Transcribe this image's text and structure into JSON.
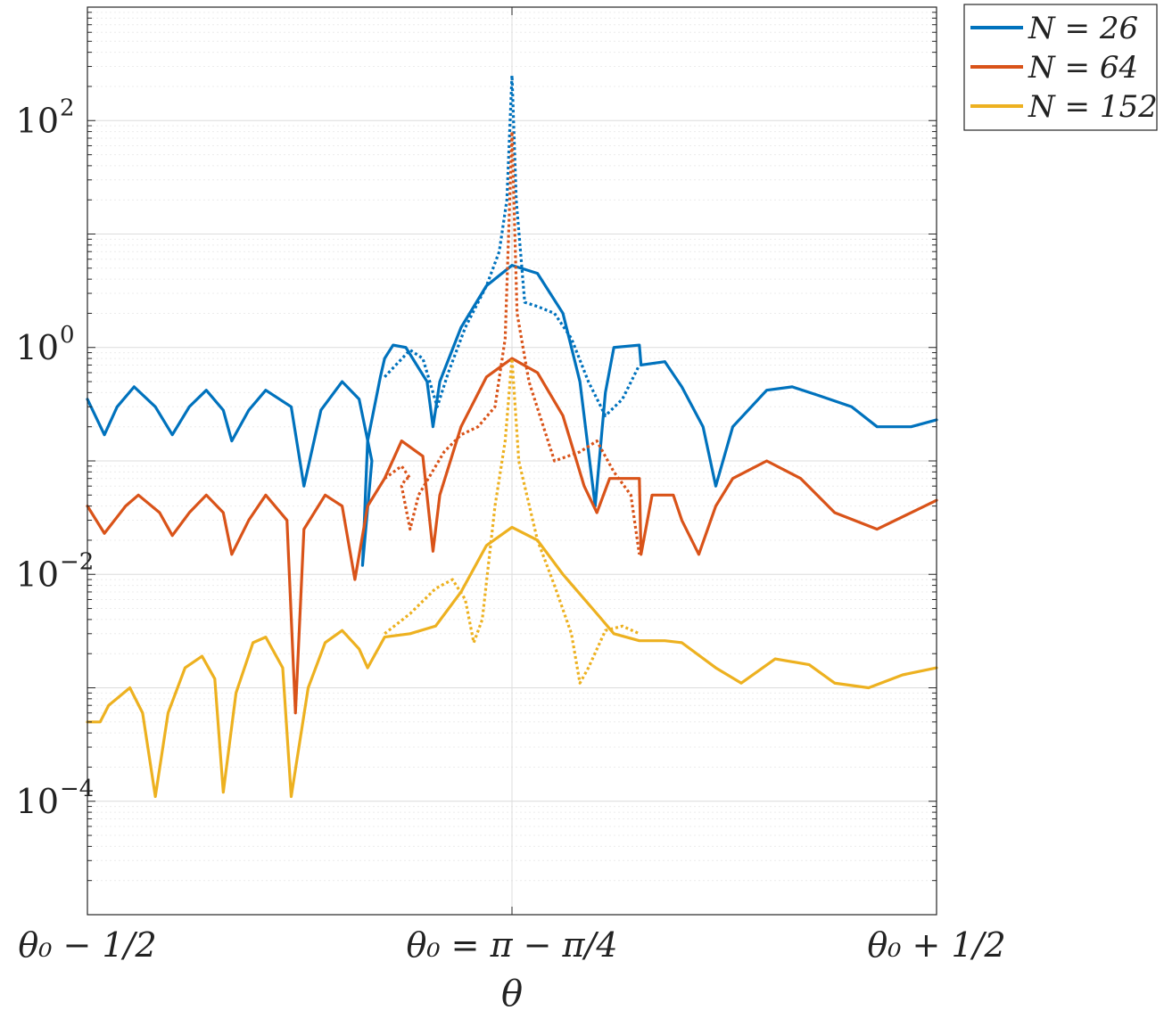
{
  "chart_data": {
    "type": "line",
    "title": "",
    "xlabel": "θ",
    "ylabel": "",
    "yscale": "log",
    "ylim": [
      1e-05,
      1000
    ],
    "xlim": [
      -0.5,
      0.5
    ],
    "grid": "on (major and minor)",
    "legend_placement": "outside top-right",
    "x_ticks": [
      {
        "x": -0.5,
        "label": "θ₀ − 1/2"
      },
      {
        "x": 0,
        "label": "θ₀ = π − π/4"
      },
      {
        "x": 0.5,
        "label": "θ₀ + 1/2"
      }
    ],
    "y_ticks": [
      {
        "y": 100,
        "base": "10",
        "exp": "2"
      },
      {
        "y": 1,
        "base": "10",
        "exp": "0"
      },
      {
        "y": 0.01,
        "base": "10",
        "exp": "−2"
      },
      {
        "y": 0.0001,
        "base": "10",
        "exp": "−4"
      }
    ],
    "colors": {
      "N26": "#0072BD",
      "N64": "#D95319",
      "N152": "#EDB120"
    },
    "series": [
      {
        "name": "N = 26",
        "legend": true,
        "style": "solid",
        "color": "#0072BD",
        "points": [
          [
            -0.5,
            0.35
          ],
          [
            -0.48,
            0.17
          ],
          [
            -0.465,
            0.3
          ],
          [
            -0.445,
            0.45
          ],
          [
            -0.42,
            0.3
          ],
          [
            -0.4,
            0.17
          ],
          [
            -0.38,
            0.3
          ],
          [
            -0.36,
            0.42
          ],
          [
            -0.34,
            0.28
          ],
          [
            -0.33,
            0.15
          ],
          [
            -0.31,
            0.28
          ],
          [
            -0.29,
            0.42
          ],
          [
            -0.26,
            0.3
          ],
          [
            -0.245,
            0.06
          ],
          [
            -0.225,
            0.28
          ],
          [
            -0.2,
            0.5
          ],
          [
            -0.18,
            0.35
          ],
          [
            -0.165,
            0.1
          ],
          [
            -0.176,
            0.012
          ],
          [
            -0.17,
            0.15
          ],
          [
            -0.155,
            0.55
          ],
          [
            -0.15,
            0.8
          ],
          [
            -0.14,
            1.05
          ],
          [
            -0.125,
            1.0
          ],
          [
            -0.1,
            0.5
          ],
          [
            -0.093,
            0.2
          ],
          [
            -0.085,
            0.5
          ],
          [
            -0.06,
            1.5
          ],
          [
            -0.03,
            3.5
          ],
          [
            0,
            5.3
          ],
          [
            0.03,
            4.5
          ],
          [
            0.06,
            2
          ],
          [
            0.08,
            0.5
          ],
          [
            0.098,
            0.04
          ],
          [
            0.11,
            0.4
          ],
          [
            0.12,
            1.0
          ],
          [
            0.15,
            1.05
          ],
          [
            0.152,
            0.7
          ],
          [
            0.18,
            0.75
          ],
          [
            0.2,
            0.45
          ],
          [
            0.225,
            0.2
          ],
          [
            0.24,
            0.06
          ],
          [
            0.26,
            0.2
          ],
          [
            0.3,
            0.42
          ],
          [
            0.33,
            0.45
          ],
          [
            0.36,
            0.38
          ],
          [
            0.4,
            0.3
          ],
          [
            0.43,
            0.2
          ],
          [
            0.47,
            0.2
          ],
          [
            0.5,
            0.23
          ]
        ]
      },
      {
        "name": "N = 26 (dotted)",
        "legend": false,
        "style": "dotted",
        "color": "#0072BD",
        "points": [
          [
            -0.15,
            0.55
          ],
          [
            -0.12,
            0.95
          ],
          [
            -0.105,
            0.8
          ],
          [
            -0.095,
            0.45
          ],
          [
            -0.088,
            0.3
          ],
          [
            -0.075,
            0.6
          ],
          [
            -0.055,
            1.5
          ],
          [
            -0.03,
            3.5
          ],
          [
            -0.015,
            7
          ],
          [
            -0.006,
            20
          ],
          [
            0,
            250
          ],
          [
            0.005,
            20
          ],
          [
            0.015,
            2.5
          ],
          [
            0.03,
            2.3
          ],
          [
            0.05,
            2.0
          ],
          [
            0.07,
            1.2
          ],
          [
            0.09,
            0.5
          ],
          [
            0.11,
            0.25
          ],
          [
            0.13,
            0.35
          ],
          [
            0.15,
            0.7
          ]
        ]
      },
      {
        "name": "N = 64",
        "legend": true,
        "style": "solid",
        "color": "#D95319",
        "points": [
          [
            -0.5,
            0.04
          ],
          [
            -0.48,
            0.023
          ],
          [
            -0.455,
            0.04
          ],
          [
            -0.44,
            0.05
          ],
          [
            -0.415,
            0.035
          ],
          [
            -0.4,
            0.022
          ],
          [
            -0.38,
            0.035
          ],
          [
            -0.36,
            0.05
          ],
          [
            -0.34,
            0.035
          ],
          [
            -0.33,
            0.015
          ],
          [
            -0.31,
            0.03
          ],
          [
            -0.29,
            0.05
          ],
          [
            -0.265,
            0.03
          ],
          [
            -0.255,
            0.0006
          ],
          [
            -0.245,
            0.025
          ],
          [
            -0.22,
            0.05
          ],
          [
            -0.2,
            0.04
          ],
          [
            -0.185,
            0.009
          ],
          [
            -0.17,
            0.04
          ],
          [
            -0.15,
            0.07
          ],
          [
            -0.13,
            0.15
          ],
          [
            -0.105,
            0.11
          ],
          [
            -0.093,
            0.016
          ],
          [
            -0.085,
            0.05
          ],
          [
            -0.06,
            0.2
          ],
          [
            -0.03,
            0.55
          ],
          [
            0,
            0.8
          ],
          [
            0.03,
            0.6
          ],
          [
            0.06,
            0.25
          ],
          [
            0.085,
            0.06
          ],
          [
            0.1,
            0.035
          ],
          [
            0.115,
            0.07
          ],
          [
            0.15,
            0.07
          ],
          [
            0.152,
            0.015
          ],
          [
            0.165,
            0.05
          ],
          [
            0.19,
            0.05
          ],
          [
            0.2,
            0.03
          ],
          [
            0.22,
            0.015
          ],
          [
            0.24,
            0.04
          ],
          [
            0.26,
            0.07
          ],
          [
            0.3,
            0.1
          ],
          [
            0.34,
            0.07
          ],
          [
            0.38,
            0.035
          ],
          [
            0.43,
            0.025
          ],
          [
            0.47,
            0.035
          ],
          [
            0.5,
            0.045
          ]
        ]
      },
      {
        "name": "N = 64 (dotted)",
        "legend": false,
        "style": "dotted",
        "color": "#D95319",
        "points": [
          [
            -0.15,
            0.07
          ],
          [
            -0.13,
            0.09
          ],
          [
            -0.12,
            0.07
          ],
          [
            -0.12,
            0.07
          ],
          [
            -0.125,
            0.07
          ],
          [
            -0.13,
            0.06
          ],
          [
            -0.12,
            0.025
          ],
          [
            -0.11,
            0.05
          ],
          [
            -0.08,
            0.12
          ],
          [
            -0.06,
            0.17
          ],
          [
            -0.04,
            0.2
          ],
          [
            -0.02,
            0.3
          ],
          [
            -0.008,
            1.2
          ],
          [
            0,
            80
          ],
          [
            0.006,
            2
          ],
          [
            0.02,
            0.5
          ],
          [
            0.05,
            0.1
          ],
          [
            0.08,
            0.12
          ],
          [
            0.1,
            0.15
          ],
          [
            0.12,
            0.08
          ],
          [
            0.14,
            0.05
          ],
          [
            0.15,
            0.015
          ]
        ]
      },
      {
        "name": "N = 152",
        "legend": true,
        "style": "solid",
        "color": "#EDB120",
        "points": [
          [
            -0.5,
            0.0005
          ],
          [
            -0.485,
            0.0005
          ],
          [
            -0.475,
            0.0007
          ],
          [
            -0.45,
            0.001
          ],
          [
            -0.435,
            0.0006
          ],
          [
            -0.42,
            0.00011
          ],
          [
            -0.405,
            0.0006
          ],
          [
            -0.385,
            0.0015
          ],
          [
            -0.365,
            0.0019
          ],
          [
            -0.35,
            0.0012
          ],
          [
            -0.34,
            0.00012
          ],
          [
            -0.325,
            0.0009
          ],
          [
            -0.305,
            0.0025
          ],
          [
            -0.29,
            0.0028
          ],
          [
            -0.27,
            0.0015
          ],
          [
            -0.26,
            0.00011
          ],
          [
            -0.24,
            0.001
          ],
          [
            -0.22,
            0.0025
          ],
          [
            -0.2,
            0.0032
          ],
          [
            -0.18,
            0.0022
          ],
          [
            -0.17,
            0.0015
          ],
          [
            -0.15,
            0.0028
          ],
          [
            -0.12,
            0.003
          ],
          [
            -0.09,
            0.0035
          ],
          [
            -0.06,
            0.007
          ],
          [
            -0.03,
            0.018
          ],
          [
            0,
            0.026
          ],
          [
            0.03,
            0.02
          ],
          [
            0.06,
            0.01
          ],
          [
            0.1,
            0.0045
          ],
          [
            0.12,
            0.003
          ],
          [
            0.15,
            0.0026
          ],
          [
            0.18,
            0.0026
          ],
          [
            0.2,
            0.0025
          ],
          [
            0.24,
            0.0015
          ],
          [
            0.27,
            0.0011
          ],
          [
            0.31,
            0.0018
          ],
          [
            0.35,
            0.0016
          ],
          [
            0.38,
            0.0011
          ],
          [
            0.42,
            0.001
          ],
          [
            0.46,
            0.0013
          ],
          [
            0.5,
            0.0015
          ]
        ]
      },
      {
        "name": "N = 152 (dotted)",
        "legend": false,
        "style": "dotted",
        "color": "#EDB120",
        "points": [
          [
            -0.15,
            0.003
          ],
          [
            -0.12,
            0.0045
          ],
          [
            -0.09,
            0.0075
          ],
          [
            -0.07,
            0.009
          ],
          [
            -0.055,
            0.006
          ],
          [
            -0.045,
            0.0025
          ],
          [
            -0.035,
            0.004
          ],
          [
            -0.02,
            0.04
          ],
          [
            -0.008,
            0.15
          ],
          [
            0,
            0.8
          ],
          [
            0.008,
            0.1
          ],
          [
            0.03,
            0.02
          ],
          [
            0.05,
            0.008
          ],
          [
            0.07,
            0.003
          ],
          [
            0.08,
            0.0011
          ],
          [
            0.09,
            0.0015
          ],
          [
            0.11,
            0.0032
          ],
          [
            0.13,
            0.0035
          ],
          [
            0.15,
            0.003
          ]
        ]
      }
    ]
  }
}
